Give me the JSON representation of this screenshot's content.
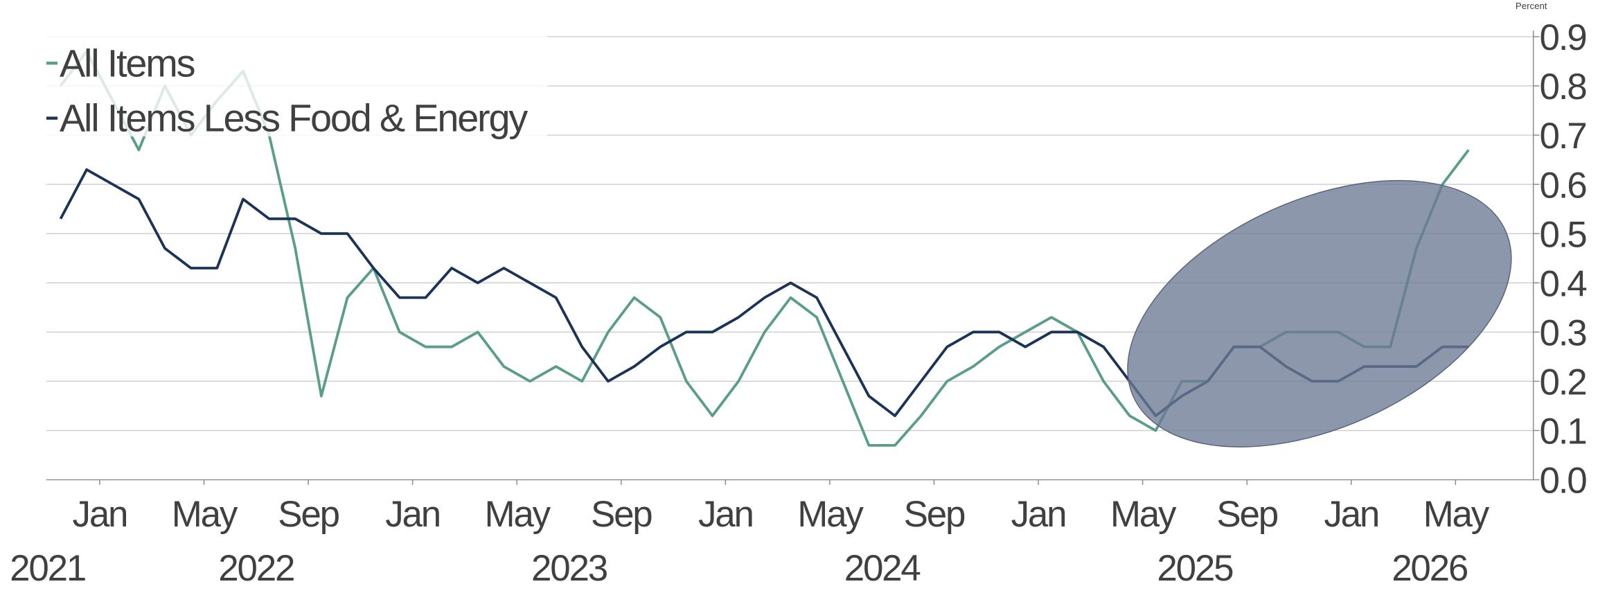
{
  "chart_data": {
    "type": "line",
    "y_axis_label": "Percent",
    "legend": "upper left",
    "grid": true,
    "x": [
      "2021-11",
      "2021-12",
      "2022-01",
      "2022-02",
      "2022-03",
      "2022-04",
      "2022-05",
      "2022-06",
      "2022-07",
      "2022-08",
      "2022-09",
      "2022-10",
      "2022-11",
      "2022-12",
      "2023-01",
      "2023-02",
      "2023-03",
      "2023-04",
      "2023-05",
      "2023-06",
      "2023-07",
      "2023-08",
      "2023-09",
      "2023-10",
      "2023-11",
      "2023-12",
      "2024-01",
      "2024-02",
      "2024-03",
      "2024-04",
      "2024-05",
      "2024-06",
      "2024-07",
      "2024-08",
      "2024-09",
      "2024-10",
      "2024-11",
      "2024-12",
      "2025-01",
      "2025-02",
      "2025-03",
      "2025-04",
      "2025-05",
      "2025-06",
      "2025-07",
      "2025-08",
      "2025-09",
      "2025-10",
      "2025-11",
      "2025-12",
      "2026-01",
      "2026-02",
      "2026-03",
      "2026-04",
      "2026-05"
    ],
    "series": [
      {
        "name": "All Items",
        "color": "#5a9e8a",
        "values": [
          0.8,
          0.87,
          0.77,
          0.67,
          0.8,
          0.7,
          0.77,
          0.83,
          0.7,
          0.47,
          0.17,
          0.37,
          0.43,
          0.3,
          0.27,
          0.27,
          0.3,
          0.23,
          0.2,
          0.23,
          0.2,
          0.3,
          0.37,
          0.33,
          0.2,
          0.13,
          0.2,
          0.3,
          0.37,
          0.33,
          0.2,
          0.07,
          0.07,
          0.13,
          0.2,
          0.23,
          0.27,
          0.3,
          0.33,
          0.3,
          0.2,
          0.13,
          0.1,
          0.2,
          0.2,
          0.27,
          0.27,
          0.3,
          0.3,
          0.3,
          0.27,
          0.27,
          0.47,
          0.6,
          0.67
        ]
      },
      {
        "name": "All Items Less Food & Energy",
        "color": "#1c3358",
        "values": [
          0.53,
          0.63,
          0.6,
          0.57,
          0.47,
          0.43,
          0.43,
          0.57,
          0.53,
          0.53,
          0.5,
          0.5,
          0.43,
          0.37,
          0.37,
          0.43,
          0.4,
          0.43,
          0.4,
          0.37,
          0.27,
          0.2,
          0.23,
          0.27,
          0.3,
          0.3,
          0.33,
          0.37,
          0.4,
          0.37,
          0.27,
          0.17,
          0.13,
          0.2,
          0.27,
          0.3,
          0.3,
          0.27,
          0.3,
          0.3,
          0.27,
          0.2,
          0.13,
          0.17,
          0.2,
          0.27,
          0.27,
          0.23,
          0.2,
          0.2,
          0.23,
          0.23,
          0.23,
          0.27,
          0.27
        ]
      }
    ],
    "ylim": [
      0,
      0.9
    ],
    "yticks": [
      {
        "value": 0,
        "label": "0.0"
      },
      0.1,
      0.2,
      0.3,
      0.4,
      0.5,
      0.6,
      0.7,
      0.8,
      0.9
    ],
    "xticks": [
      {
        "value": "2022-01",
        "label": "Jan"
      },
      {
        "value": "2022-05",
        "label": "May"
      },
      {
        "value": "2022-09",
        "label": "Sep"
      },
      {
        "value": "2023-01",
        "label": "Jan"
      },
      {
        "value": "2023-05",
        "label": "May"
      },
      {
        "value": "2023-09",
        "label": "Sep"
      },
      {
        "value": "2024-01",
        "label": "Jan"
      },
      {
        "value": "2024-05",
        "label": "May"
      },
      {
        "value": "2024-09",
        "label": "Sep"
      },
      {
        "value": "2025-01",
        "label": "Jan"
      },
      {
        "value": "2025-05",
        "label": "May"
      },
      {
        "value": "2025-09",
        "label": "Sep"
      },
      {
        "value": "2026-01",
        "label": "Jan"
      },
      {
        "value": "2026-05",
        "label": "May"
      }
    ],
    "year_ticks": [
      {
        "value": "2021-11",
        "label": "2021"
      },
      {
        "value": "2022-07",
        "label": "2022"
      },
      {
        "value": "2023-07",
        "label": "2023"
      },
      {
        "value": "2024-07",
        "label": "2024"
      },
      {
        "value": "2025-07",
        "label": "2025"
      },
      {
        "value": "2026-04",
        "label": "2026"
      }
    ]
  }
}
